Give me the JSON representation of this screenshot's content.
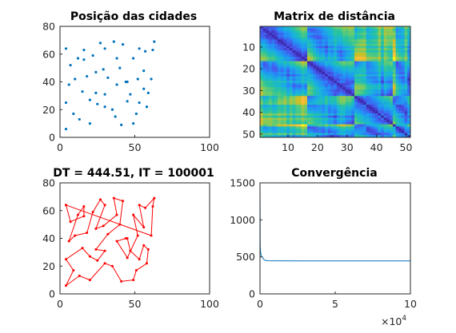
{
  "chart_data": [
    {
      "type": "scatter",
      "title": "Posição das cidades",
      "xlim": [
        0,
        100
      ],
      "ylim": [
        0,
        80
      ],
      "xticks": [
        "0",
        "50",
        "100"
      ],
      "yticks": [
        "0",
        "20",
        "40",
        "60",
        "80"
      ],
      "color": "#0072BD",
      "points": [
        [
          4,
          64
        ],
        [
          7,
          52
        ],
        [
          12,
          57
        ],
        [
          16,
          63
        ],
        [
          16,
          56
        ],
        [
          22,
          59
        ],
        [
          27,
          68
        ],
        [
          30,
          64
        ],
        [
          36,
          69
        ],
        [
          38,
          57
        ],
        [
          42,
          67
        ],
        [
          49,
          57
        ],
        [
          53,
          64
        ],
        [
          57,
          62
        ],
        [
          63,
          69
        ],
        [
          62,
          63
        ],
        [
          6,
          38
        ],
        [
          10,
          42
        ],
        [
          18,
          44
        ],
        [
          24,
          47
        ],
        [
          29,
          49
        ],
        [
          32,
          43
        ],
        [
          40,
          50
        ],
        [
          38,
          38
        ],
        [
          44,
          40
        ],
        [
          47,
          31
        ],
        [
          52,
          42
        ],
        [
          56,
          48
        ],
        [
          61,
          42
        ],
        [
          56,
          35
        ],
        [
          59,
          32
        ],
        [
          53,
          25
        ],
        [
          4,
          25
        ],
        [
          9,
          17
        ],
        [
          13,
          13
        ],
        [
          20,
          10
        ],
        [
          20,
          27
        ],
        [
          25,
          24
        ],
        [
          30,
          22
        ],
        [
          35,
          20
        ],
        [
          41,
          9
        ],
        [
          45,
          26
        ],
        [
          49,
          10
        ],
        [
          51,
          17
        ],
        [
          58,
          22
        ],
        [
          4,
          6
        ],
        [
          15,
          33
        ],
        [
          24,
          32
        ],
        [
          30,
          31
        ],
        [
          37,
          15
        ],
        [
          45,
          40
        ]
      ]
    },
    {
      "type": "heatmap",
      "title": "Matrix de distância",
      "xlim": [
        0.5,
        51.5
      ],
      "ylim": [
        0.5,
        51.5
      ],
      "xticks": [
        "10",
        "20",
        "30",
        "40",
        "50"
      ],
      "yticks": [
        "10",
        "20",
        "30",
        "40",
        "50"
      ],
      "size": 51,
      "colormap": "parula"
    },
    {
      "type": "line",
      "title": "DT = 444.51, IT = 100001",
      "xlim": [
        0,
        100
      ],
      "ylim": [
        0,
        80
      ],
      "xticks": [
        "0",
        "50",
        "100"
      ],
      "yticks": [
        "0",
        "20",
        "40",
        "60",
        "80"
      ],
      "color": "#ff0000",
      "points": [
        [
          4,
          64
        ],
        [
          7,
          52
        ],
        [
          16,
          56
        ],
        [
          16,
          63
        ],
        [
          12,
          57
        ],
        [
          6,
          38
        ],
        [
          10,
          42
        ],
        [
          18,
          44
        ],
        [
          22,
          59
        ],
        [
          27,
          68
        ],
        [
          30,
          64
        ],
        [
          24,
          47
        ],
        [
          29,
          49
        ],
        [
          38,
          57
        ],
        [
          36,
          69
        ],
        [
          42,
          67
        ],
        [
          40,
          50
        ],
        [
          32,
          43
        ],
        [
          24,
          32
        ],
        [
          30,
          31
        ],
        [
          25,
          24
        ],
        [
          20,
          27
        ],
        [
          15,
          33
        ],
        [
          4,
          25
        ],
        [
          9,
          17
        ],
        [
          4,
          6
        ],
        [
          13,
          13
        ],
        [
          20,
          10
        ],
        [
          30,
          22
        ],
        [
          35,
          20
        ],
        [
          41,
          9
        ],
        [
          49,
          10
        ],
        [
          51,
          17
        ],
        [
          58,
          22
        ],
        [
          59,
          32
        ],
        [
          56,
          35
        ],
        [
          53,
          25
        ],
        [
          47,
          31
        ],
        [
          45,
          40
        ],
        [
          44,
          40
        ],
        [
          38,
          38
        ],
        [
          45,
          26
        ],
        [
          52,
          42
        ],
        [
          49,
          57
        ],
        [
          56,
          48
        ],
        [
          53,
          64
        ],
        [
          57,
          62
        ],
        [
          63,
          69
        ],
        [
          62,
          63
        ],
        [
          61,
          42
        ],
        [
          4,
          64
        ]
      ]
    },
    {
      "type": "line",
      "title": "Convergência",
      "xlim": [
        0,
        100000
      ],
      "ylim": [
        0,
        1500
      ],
      "xticks": [
        "0",
        "5",
        "10"
      ],
      "xtick_values": [
        0,
        50000,
        100000
      ],
      "yticks": [
        "0",
        "500",
        "1000",
        "1500"
      ],
      "multiplier": "×10",
      "multiplier_exp": "4",
      "color": "#0072BD",
      "series": [
        {
          "x": [
            0,
            150,
            400,
            800,
            1300,
            1800,
            2300,
            2800,
            3500,
            5000,
            10000,
            30000,
            60000,
            100000
          ],
          "y": [
            1500,
            640,
            560,
            520,
            500,
            490,
            470,
            460,
            452,
            448,
            446,
            445,
            444.6,
            444.51
          ]
        }
      ]
    }
  ]
}
